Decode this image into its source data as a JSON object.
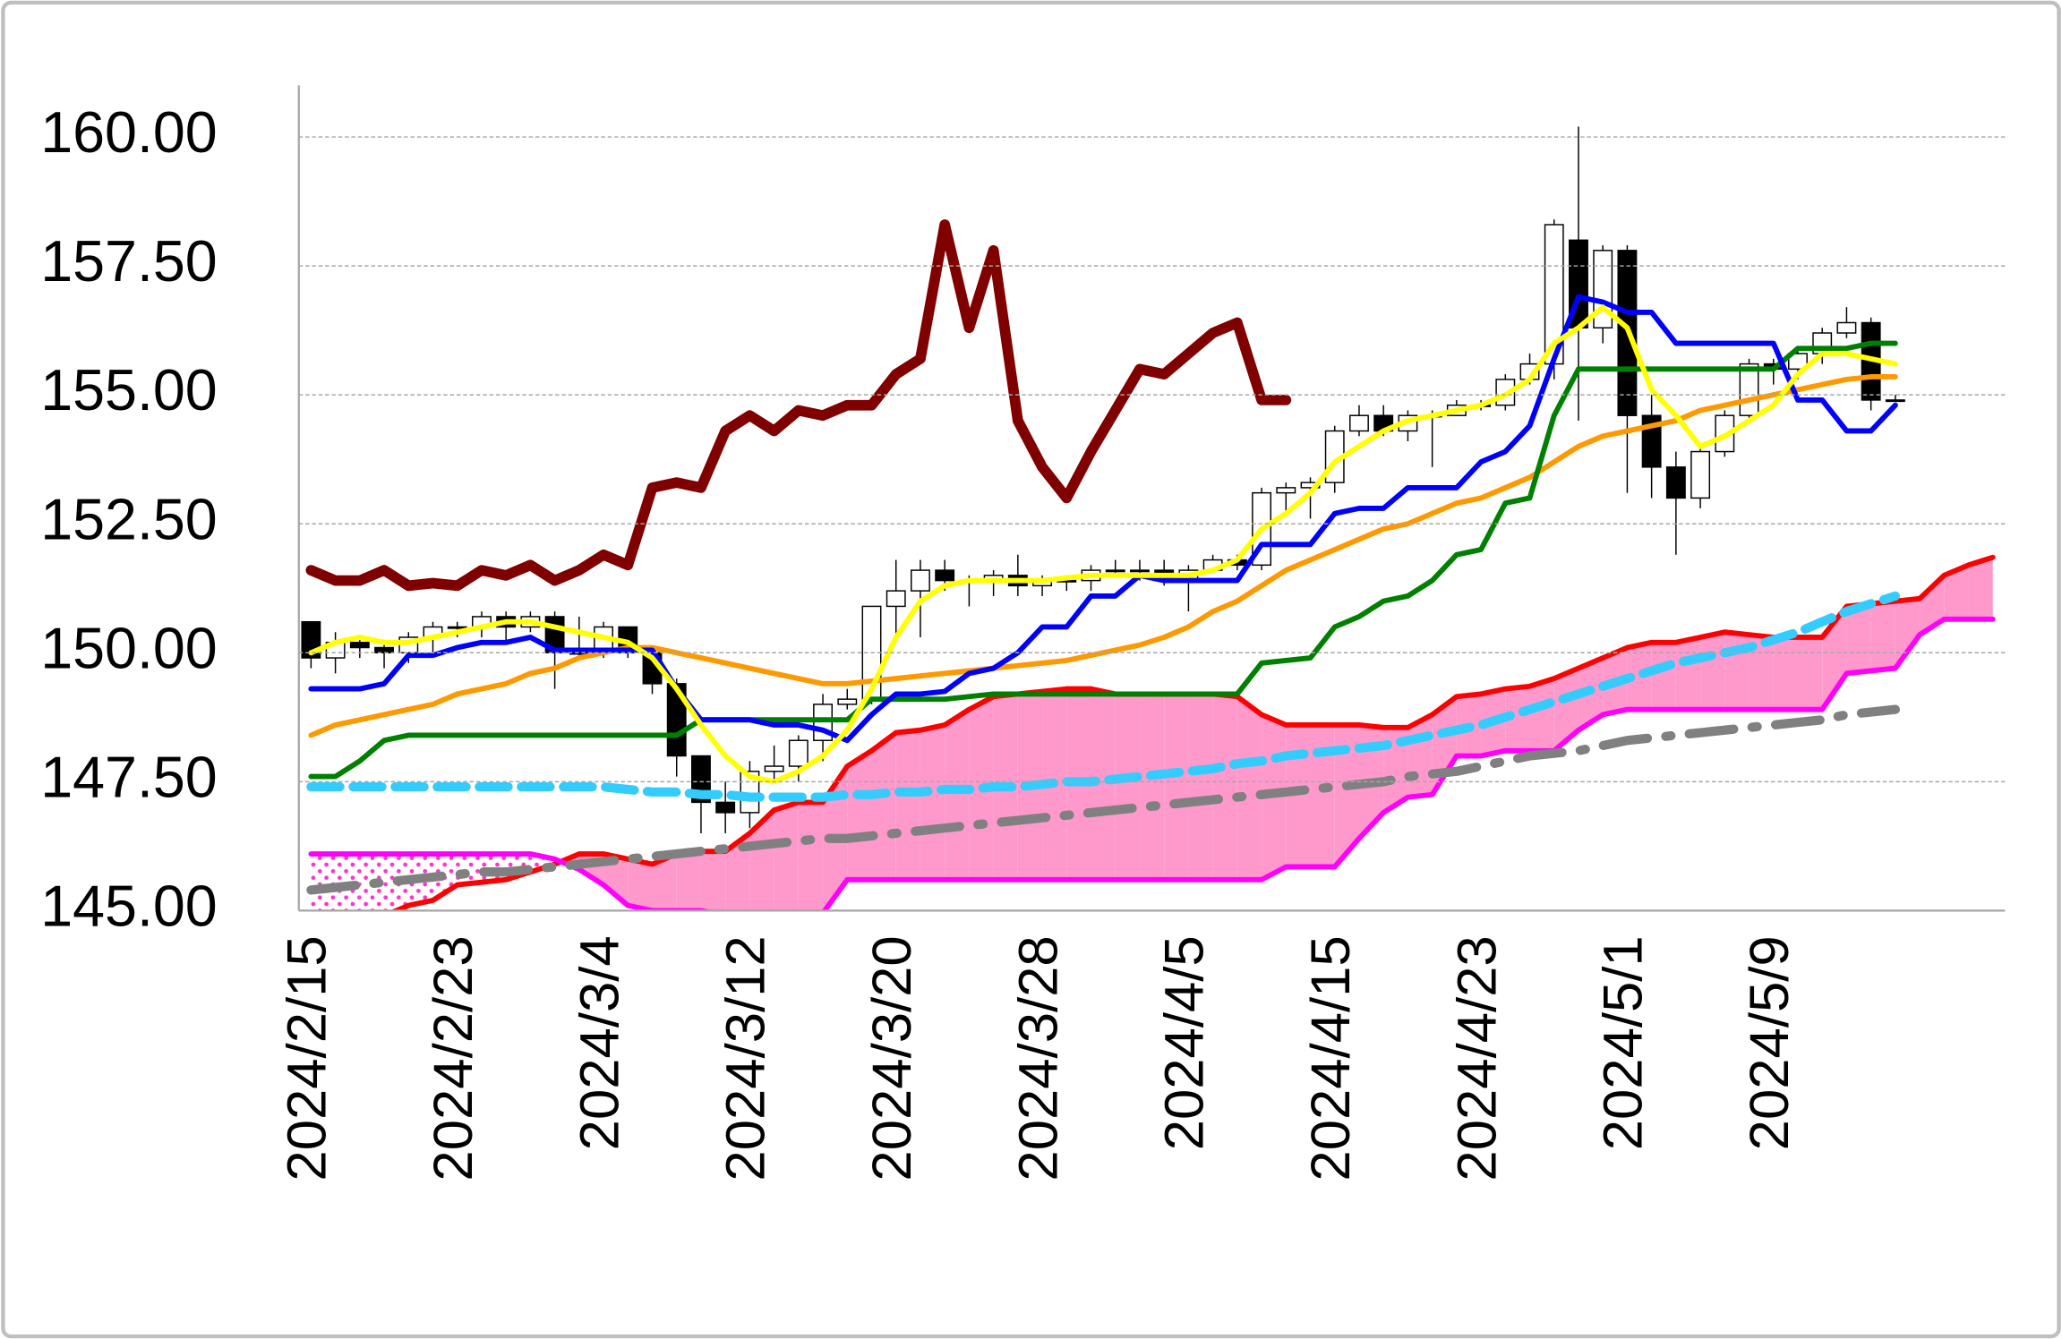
{
  "chart_data": {
    "type": "candlestick",
    "categories": [
      "2024/2/15",
      null,
      null,
      null,
      null,
      null,
      "2024/2/23",
      null,
      null,
      null,
      null,
      null,
      "2024/3/4",
      null,
      null,
      null,
      null,
      null,
      "2024/3/12",
      null,
      null,
      null,
      null,
      null,
      "2024/3/20",
      null,
      null,
      null,
      null,
      null,
      "2024/3/28",
      null,
      null,
      null,
      null,
      null,
      "2024/4/5",
      null,
      null,
      null,
      null,
      null,
      "2024/4/15",
      null,
      null,
      null,
      null,
      null,
      "2024/4/23",
      null,
      null,
      null,
      null,
      null,
      "2024/5/1",
      null,
      null,
      null,
      null,
      null,
      "2024/5/9",
      null,
      null,
      null,
      null,
      null,
      null,
      null,
      null,
      null
    ],
    "open": [
      150.6,
      149.9,
      150.2,
      150.1,
      150.0,
      150.3,
      150.5,
      150.5,
      150.7,
      150.5,
      150.7,
      150.0,
      150.0,
      150.5,
      150.0,
      149.4,
      148.0,
      147.1,
      146.9,
      147.7,
      147.8,
      148.3,
      149.0,
      149.1,
      150.9,
      151.2,
      151.6,
      151.4,
      151.4,
      151.5,
      151.3,
      151.4,
      151.4,
      151.6,
      151.6,
      151.6,
      151.4,
      151.6,
      151.8,
      151.7,
      153.1,
      153.2,
      153.3,
      154.3,
      154.6,
      154.3,
      154.6,
      154.6,
      154.8,
      154.8,
      155.3,
      155.6,
      158.0,
      156.3,
      157.8,
      154.6,
      153.6,
      153.0,
      153.9,
      154.6,
      155.6,
      155.5,
      155.8,
      156.2,
      156.4,
      154.9,
      null,
      null,
      null,
      null
    ],
    "high": [
      150.6,
      150.4,
      150.3,
      150.2,
      150.4,
      150.6,
      150.6,
      150.8,
      150.8,
      150.8,
      150.8,
      150.7,
      150.6,
      150.5,
      150.0,
      149.5,
      148.0,
      147.5,
      147.9,
      148.2,
      148.4,
      149.2,
      149.3,
      150.9,
      151.8,
      151.8,
      151.8,
      151.5,
      151.6,
      151.9,
      151.5,
      151.5,
      151.7,
      151.8,
      151.8,
      151.8,
      151.7,
      151.9,
      151.9,
      153.2,
      153.3,
      153.4,
      154.4,
      154.8,
      154.8,
      154.7,
      154.7,
      154.9,
      154.9,
      155.4,
      155.8,
      158.4,
      160.2,
      157.9,
      157.9,
      155.0,
      153.9,
      154.0,
      154.7,
      155.7,
      155.7,
      155.9,
      156.3,
      156.7,
      156.5,
      155.0,
      null,
      null,
      null,
      null
    ],
    "low": [
      149.7,
      149.6,
      149.9,
      149.7,
      149.8,
      150.0,
      150.3,
      150.3,
      150.2,
      150.4,
      149.3,
      149.9,
      149.9,
      149.9,
      149.2,
      147.6,
      146.5,
      146.5,
      146.6,
      147.5,
      147.5,
      147.9,
      148.9,
      149.0,
      150.2,
      150.3,
      151.2,
      150.9,
      151.1,
      151.1,
      151.1,
      151.2,
      151.2,
      151.5,
      151.4,
      151.3,
      150.8,
      151.6,
      151.6,
      151.6,
      152.7,
      152.6,
      153.1,
      154.2,
      154.2,
      154.1,
      153.6,
      154.6,
      154.7,
      154.7,
      155.2,
      155.3,
      154.5,
      156.0,
      153.1,
      153.0,
      151.9,
      152.8,
      153.8,
      154.5,
      155.2,
      155.3,
      155.6,
      156.1,
      154.7,
      154.9,
      null,
      null,
      null,
      null
    ],
    "close": [
      149.9,
      150.2,
      150.1,
      150.0,
      150.3,
      150.5,
      150.5,
      150.7,
      150.5,
      150.7,
      150.0,
      150.0,
      150.5,
      150.0,
      149.4,
      148.0,
      147.1,
      146.9,
      147.7,
      147.8,
      148.3,
      149.0,
      149.1,
      150.9,
      151.2,
      151.6,
      151.4,
      151.4,
      151.5,
      151.3,
      151.4,
      151.4,
      151.6,
      151.6,
      151.6,
      151.4,
      151.6,
      151.8,
      151.7,
      153.1,
      153.2,
      153.3,
      154.3,
      154.6,
      154.3,
      154.6,
      154.6,
      154.8,
      154.8,
      155.3,
      155.6,
      158.3,
      156.3,
      157.8,
      154.6,
      153.6,
      153.0,
      153.9,
      154.6,
      155.6,
      155.5,
      155.8,
      156.2,
      156.4,
      154.9,
      154.9,
      null,
      null,
      null,
      null
    ],
    "up_color": "#ffffff",
    "down_color": "#000000",
    "cloud": {
      "fill": "#ff99cc",
      "span_a": {
        "color": "#ff0000",
        "values": [
          144.5,
          144.6,
          144.7,
          144.9,
          145.1,
          145.2,
          145.5,
          145.55,
          145.6,
          145.75,
          145.9,
          146.1,
          146.1,
          146.0,
          145.9,
          146.1,
          146.15,
          146.15,
          146.5,
          146.95,
          147.1,
          147.1,
          147.8,
          148.1,
          148.45,
          148.5,
          148.6,
          148.9,
          149.15,
          149.2,
          149.25,
          149.3,
          149.3,
          149.2,
          149.2,
          149.2,
          149.2,
          149.2,
          149.15,
          148.8,
          148.6,
          148.6,
          148.6,
          148.6,
          148.55,
          148.55,
          148.8,
          149.15,
          149.2,
          149.3,
          149.35,
          149.5,
          149.7,
          149.9,
          150.1,
          150.2,
          150.2,
          150.3,
          150.4,
          150.35,
          150.3,
          150.3,
          150.3,
          150.9,
          150.95,
          151.0,
          151.05,
          151.5,
          151.7,
          151.85
        ]
      },
      "span_b": {
        "color": "#ff00ff",
        "values": [
          146.1,
          146.1,
          146.1,
          146.1,
          146.1,
          146.1,
          146.1,
          146.1,
          146.1,
          146.1,
          146.0,
          145.8,
          145.5,
          145.1,
          145.0,
          145.0,
          145.0,
          144.9,
          144.9,
          144.9,
          144.9,
          144.95,
          145.6,
          145.6,
          145.6,
          145.6,
          145.6,
          145.6,
          145.6,
          145.6,
          145.6,
          145.6,
          145.6,
          145.6,
          145.6,
          145.6,
          145.6,
          145.6,
          145.6,
          145.6,
          145.85,
          145.85,
          145.85,
          146.4,
          146.9,
          147.2,
          147.25,
          148.0,
          148.0,
          148.1,
          148.1,
          148.1,
          148.5,
          148.8,
          148.9,
          148.9,
          148.9,
          148.9,
          148.9,
          148.9,
          148.9,
          148.9,
          148.9,
          149.6,
          149.65,
          149.7,
          150.35,
          150.65,
          150.65,
          150.65
        ]
      }
    },
    "series": [
      {
        "color": "#808080",
        "width": 7,
        "dash": "dash-dot",
        "values": [
          145.4,
          145.45,
          145.5,
          145.55,
          145.6,
          145.65,
          145.7,
          145.75,
          145.75,
          145.8,
          145.85,
          145.9,
          145.95,
          146.0,
          146.05,
          146.1,
          146.15,
          146.2,
          146.25,
          146.3,
          146.35,
          146.4,
          146.4,
          146.45,
          146.5,
          146.55,
          146.6,
          146.65,
          146.7,
          146.75,
          146.8,
          146.85,
          146.9,
          146.95,
          147.0,
          147.05,
          147.1,
          147.15,
          147.2,
          147.25,
          147.3,
          147.35,
          147.4,
          147.45,
          147.5,
          147.6,
          147.65,
          147.7,
          147.8,
          147.9,
          148.0,
          148.05,
          148.1,
          148.2,
          148.3,
          148.35,
          148.4,
          148.45,
          148.5,
          148.55,
          148.6,
          148.65,
          148.7,
          148.8,
          148.85,
          148.9,
          null,
          null,
          null,
          null
        ]
      },
      {
        "color": "#33ccff",
        "width": 7,
        "dash": "dashed",
        "values": [
          147.4,
          147.4,
          147.4,
          147.4,
          147.4,
          147.4,
          147.4,
          147.4,
          147.4,
          147.4,
          147.4,
          147.4,
          147.4,
          147.35,
          147.3,
          147.3,
          147.25,
          147.25,
          147.2,
          147.2,
          147.2,
          147.2,
          147.25,
          147.25,
          147.3,
          147.3,
          147.35,
          147.35,
          147.4,
          147.4,
          147.45,
          147.5,
          147.5,
          147.55,
          147.6,
          147.65,
          147.7,
          147.75,
          147.85,
          147.9,
          148.0,
          148.05,
          148.1,
          148.15,
          148.2,
          148.3,
          148.4,
          148.5,
          148.6,
          148.75,
          148.9,
          149.05,
          149.2,
          149.35,
          149.5,
          149.65,
          149.8,
          149.9,
          150.0,
          150.1,
          150.25,
          150.4,
          150.6,
          150.8,
          150.95,
          151.1,
          null,
          null,
          null,
          null
        ]
      },
      {
        "color": "#ff9900",
        "width": 4,
        "dash": "solid",
        "values": [
          148.4,
          148.6,
          148.7,
          148.8,
          148.9,
          149.0,
          149.2,
          149.3,
          149.4,
          149.6,
          149.7,
          149.9,
          150.0,
          150.1,
          150.1,
          150.0,
          149.9,
          149.8,
          149.7,
          149.6,
          149.5,
          149.4,
          149.4,
          149.45,
          149.5,
          149.55,
          149.6,
          149.65,
          149.7,
          149.75,
          149.8,
          149.85,
          149.95,
          150.05,
          150.15,
          150.3,
          150.5,
          150.8,
          151.0,
          151.3,
          151.6,
          151.8,
          152.0,
          152.2,
          152.4,
          152.5,
          152.7,
          152.9,
          153.0,
          153.2,
          153.4,
          153.7,
          154.0,
          154.2,
          154.3,
          154.4,
          154.5,
          154.7,
          154.8,
          154.9,
          155.0,
          155.1,
          155.2,
          155.3,
          155.35,
          155.35,
          null,
          null,
          null,
          null
        ]
      },
      {
        "color": "#008000",
        "width": 4,
        "dash": "solid",
        "values": [
          147.6,
          147.6,
          147.9,
          148.3,
          148.4,
          148.4,
          148.4,
          148.4,
          148.4,
          148.4,
          148.4,
          148.4,
          148.4,
          148.4,
          148.4,
          148.4,
          148.7,
          148.7,
          148.7,
          148.7,
          148.7,
          148.7,
          148.7,
          149.1,
          149.1,
          149.1,
          149.1,
          149.15,
          149.2,
          149.2,
          149.2,
          149.2,
          149.2,
          149.2,
          149.2,
          149.2,
          149.2,
          149.2,
          149.2,
          149.8,
          149.85,
          149.9,
          150.5,
          150.7,
          151.0,
          151.1,
          151.4,
          151.9,
          152.0,
          152.9,
          153.0,
          154.6,
          155.5,
          155.5,
          155.5,
          155.5,
          155.5,
          155.5,
          155.5,
          155.5,
          155.5,
          155.9,
          155.9,
          155.9,
          156.0,
          156.0,
          null,
          null,
          null,
          null
        ]
      },
      {
        "color": "#0000ff",
        "width": 4,
        "dash": "solid",
        "values": [
          149.3,
          149.3,
          149.3,
          149.4,
          149.95,
          149.95,
          150.1,
          150.2,
          150.2,
          150.3,
          150.05,
          150.05,
          150.05,
          150.05,
          150.05,
          149.3,
          148.7,
          148.7,
          148.7,
          148.6,
          148.6,
          148.5,
          148.3,
          148.8,
          149.2,
          149.2,
          149.25,
          149.6,
          149.7,
          150.0,
          150.5,
          150.5,
          151.1,
          151.1,
          151.5,
          151.4,
          151.4,
          151.4,
          151.4,
          152.1,
          152.1,
          152.1,
          152.7,
          152.8,
          152.8,
          153.2,
          153.2,
          153.2,
          153.7,
          153.9,
          154.4,
          155.7,
          156.9,
          156.8,
          156.6,
          156.6,
          156.0,
          156.0,
          156.0,
          156.0,
          156.0,
          154.9,
          154.9,
          154.3,
          154.3,
          154.8,
          null,
          null,
          null,
          null
        ]
      },
      {
        "color": "#ffff00",
        "width": 4,
        "dash": "solid",
        "values": [
          150.0,
          150.2,
          150.3,
          150.2,
          150.2,
          150.3,
          150.4,
          150.5,
          150.6,
          150.6,
          150.5,
          150.4,
          150.3,
          150.2,
          149.9,
          149.3,
          148.6,
          148.0,
          147.6,
          147.5,
          147.7,
          148.0,
          148.5,
          149.3,
          150.3,
          151.0,
          151.3,
          151.4,
          151.4,
          151.4,
          151.4,
          151.45,
          151.5,
          151.5,
          151.5,
          151.5,
          151.5,
          151.6,
          151.8,
          152.4,
          152.7,
          153.1,
          153.7,
          154.0,
          154.3,
          154.5,
          154.6,
          154.7,
          154.8,
          155.0,
          155.3,
          156.0,
          156.3,
          156.7,
          156.3,
          155.1,
          154.6,
          154.0,
          154.2,
          154.5,
          154.8,
          155.4,
          155.8,
          155.8,
          155.7,
          155.6,
          null,
          null,
          null,
          null
        ]
      },
      {
        "color": "#800000",
        "width": 8,
        "dash": "solid",
        "values": [
          151.6,
          151.4,
          151.4,
          151.6,
          151.3,
          151.35,
          151.3,
          151.6,
          151.5,
          151.7,
          151.4,
          151.6,
          151.9,
          151.7,
          153.2,
          153.3,
          153.2,
          154.3,
          154.6,
          154.3,
          154.7,
          154.6,
          154.8,
          154.8,
          155.4,
          155.7,
          158.3,
          156.3,
          157.8,
          154.5,
          153.6,
          153.0,
          153.9,
          154.7,
          155.5,
          155.4,
          155.8,
          156.2,
          156.4,
          154.9,
          154.9,
          null,
          null,
          null,
          null,
          null,
          null,
          null,
          null,
          null,
          null,
          null,
          null,
          null,
          null,
          null,
          null,
          null,
          null,
          null,
          null,
          null,
          null,
          null,
          null,
          null,
          null,
          null,
          null,
          null
        ]
      }
    ],
    "ylim": [
      145,
      161
    ],
    "yticks": [
      {
        "value": 145,
        "label": "145.00"
      },
      {
        "value": 147.5,
        "label": "147.50"
      },
      {
        "value": 150,
        "label": "150.00"
      },
      {
        "value": 152.5,
        "label": "152.50"
      },
      {
        "value": 155,
        "label": "155.00"
      },
      {
        "value": 157.5,
        "label": "157.50"
      },
      {
        "value": 160,
        "label": "160.00"
      }
    ],
    "grid": true
  }
}
